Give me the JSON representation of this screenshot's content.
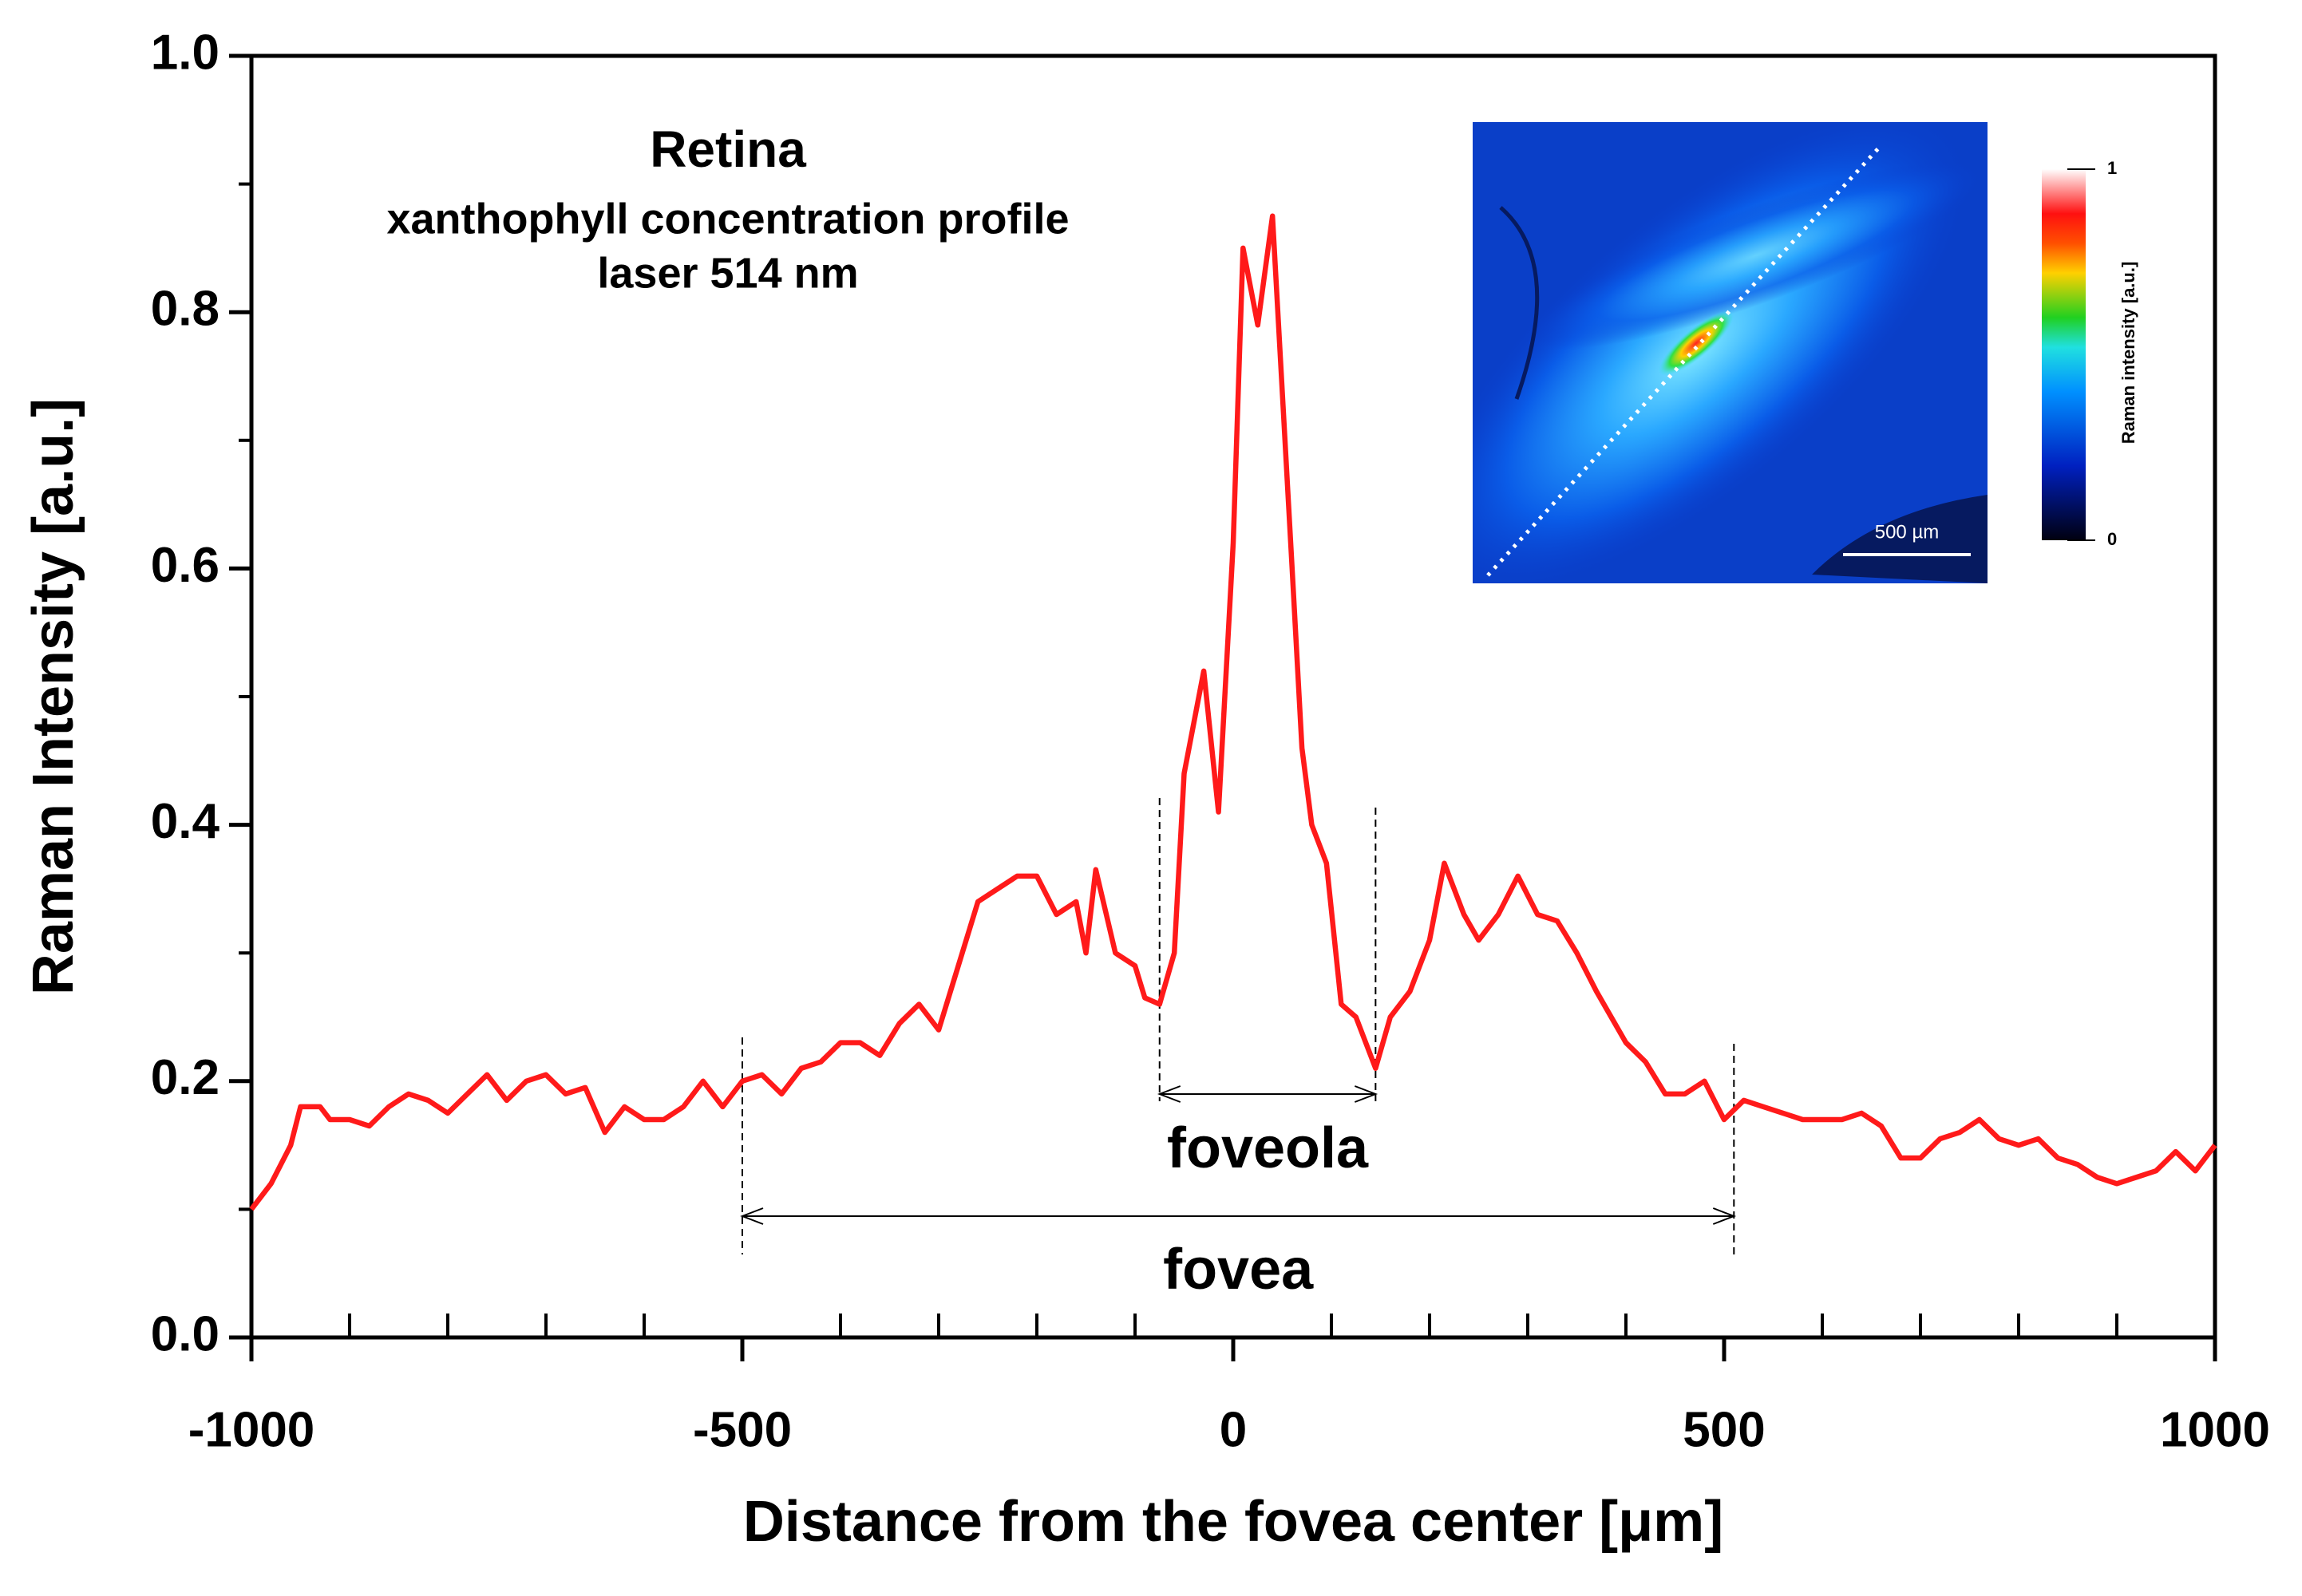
{
  "chart_data": {
    "type": "line",
    "title": "Retina",
    "subtitle": [
      "xanthophyll concentration profile",
      "laser 514 nm"
    ],
    "xlabel": "Distance from the fovea center [μm]",
    "ylabel": "Raman Intensity [a.u.]",
    "xlim": [
      -1000,
      1000
    ],
    "ylim": [
      0,
      1
    ],
    "xticks": [
      -1000,
      -500,
      0,
      500,
      1000
    ],
    "yticks": [
      {
        "value": 0,
        "label": "0.0"
      },
      0.2,
      0.4,
      0.6,
      0.8,
      {
        "value": 1,
        "label": "1.0"
      }
    ],
    "xticks_minor": [
      -900,
      -800,
      -700,
      -600,
      -400,
      -300,
      -200,
      -100,
      100,
      200,
      300,
      400,
      600,
      700,
      800,
      900
    ],
    "yticks_minor": [
      0.1,
      0.3,
      0.5,
      0.7,
      0.9
    ],
    "x": [
      -1000,
      -980,
      -960,
      -950,
      -930,
      -920,
      -900,
      -880,
      -860,
      -840,
      -820,
      -800,
      -780,
      -760,
      -740,
      -720,
      -700,
      -680,
      -660,
      -640,
      -620,
      -600,
      -580,
      -560,
      -540,
      -520,
      -500,
      -480,
      -460,
      -440,
      -420,
      -400,
      -380,
      -360,
      -340,
      -320,
      -300,
      -280,
      -260,
      -240,
      -220,
      -200,
      -180,
      -160,
      -150,
      -140,
      -120,
      -100,
      -90,
      -75,
      -60,
      -50,
      -30,
      -15,
      0,
      10,
      25,
      40,
      60,
      70,
      80,
      95,
      110,
      125,
      145,
      160,
      180,
      200,
      215,
      235,
      250,
      270,
      290,
      310,
      330,
      350,
      370,
      400,
      420,
      440,
      460,
      480,
      500,
      520,
      540,
      560,
      580,
      600,
      620,
      640,
      660,
      680,
      700,
      720,
      740,
      760,
      780,
      800,
      820,
      840,
      860,
      880,
      900,
      920,
      940,
      960,
      980,
      1000
    ],
    "series": [
      {
        "name": "xanthophyll",
        "color": "#ff1a1a",
        "values": [
          0.1,
          0.12,
          0.15,
          0.18,
          0.18,
          0.17,
          0.17,
          0.165,
          0.18,
          0.19,
          0.185,
          0.175,
          0.19,
          0.205,
          0.185,
          0.2,
          0.205,
          0.19,
          0.195,
          0.16,
          0.18,
          0.17,
          0.17,
          0.18,
          0.2,
          0.18,
          0.2,
          0.205,
          0.19,
          0.21,
          0.215,
          0.23,
          0.23,
          0.22,
          0.245,
          0.26,
          0.24,
          0.29,
          0.34,
          0.35,
          0.36,
          0.36,
          0.33,
          0.34,
          0.3,
          0.365,
          0.3,
          0.29,
          0.265,
          0.26,
          0.3,
          0.44,
          0.52,
          0.41,
          0.62,
          0.85,
          0.79,
          0.875,
          0.6,
          0.46,
          0.4,
          0.37,
          0.26,
          0.25,
          0.21,
          0.25,
          0.27,
          0.31,
          0.37,
          0.33,
          0.31,
          0.33,
          0.36,
          0.33,
          0.325,
          0.3,
          0.27,
          0.23,
          0.215,
          0.19,
          0.19,
          0.2,
          0.17,
          0.185,
          0.18,
          0.175,
          0.17,
          0.17,
          0.17,
          0.175,
          0.165,
          0.14,
          0.14,
          0.155,
          0.16,
          0.17,
          0.155,
          0.15,
          0.155,
          0.14,
          0.135,
          0.125,
          0.12,
          0.125,
          0.13,
          0.145,
          0.13,
          0.15
        ]
      }
    ],
    "annotations": [
      {
        "text": "foveola",
        "x": [
          -75,
          145
        ]
      },
      {
        "text": "fovea",
        "x": [
          -500,
          510
        ]
      }
    ],
    "inset": {
      "scale_bar": "500 µm",
      "colorbar_label": "Raman intensity [a.u.]",
      "colorbar_max": "1",
      "colorbar_min": "0"
    }
  }
}
